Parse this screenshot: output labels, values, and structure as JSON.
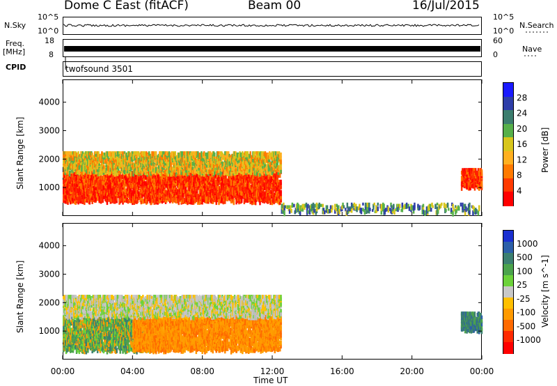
{
  "header": {
    "station": "Dome C East (fitACF)",
    "beam": "Beam 00",
    "date": "16/Jul/2015"
  },
  "strip": {
    "nsky_label": "N.Sky",
    "nsky_top": "10^5",
    "nsky_bot": "10^0",
    "nsearch_label": "N.Search",
    "nsearch_top": "10^5",
    "nsearch_bot": "10^0",
    "freq_label": "Freq.",
    "freq_unit": "[MHz]",
    "freq_top": "18",
    "freq_bot": "8",
    "nave_label": "Nave",
    "nave_top": "60",
    "nave_bot": "0",
    "cpid_label": "CPID",
    "cpid_value": "twofsound 3501"
  },
  "chart_data": [
    {
      "type": "heatmap",
      "title": "",
      "ylabel": "Slant Range [km]",
      "xlabel": "Time UT",
      "x_ticks": [
        "00:00",
        "04:00",
        "08:00",
        "12:00",
        "16:00",
        "20:00",
        "00:00"
      ],
      "y_ticks": [
        "1000",
        "2000",
        "3000",
        "4000"
      ],
      "ylim": [
        0,
        4800
      ],
      "colorbar": {
        "label": "Power [dB]",
        "ticks": [
          "4",
          "8",
          "12",
          "16",
          "20",
          "24",
          "28"
        ],
        "colors": [
          "#1a1aff",
          "#2e3ea8",
          "#3c7d6e",
          "#57b04a",
          "#d8c61c",
          "#ffb020",
          "#ff7a00",
          "#ff3a00",
          "#ff0000"
        ]
      },
      "regions": [
        {
          "t0": 0,
          "t1": 12.5,
          "r0": 600,
          "r1": 1600,
          "level": "high"
        },
        {
          "t0": 0,
          "t1": 12.5,
          "r0": 1600,
          "r1": 2300,
          "level": "mid"
        },
        {
          "t0": 12.5,
          "t1": 24,
          "r0": 200,
          "r1": 500,
          "level": "low"
        },
        {
          "t0": 22.8,
          "t1": 24,
          "r0": 1100,
          "r1": 1700,
          "level": "high"
        }
      ]
    },
    {
      "type": "heatmap",
      "title": "",
      "ylabel": "Slant Range [km]",
      "xlabel": "Time UT",
      "x_ticks": [
        "00:00",
        "04:00",
        "08:00",
        "12:00",
        "16:00",
        "20:00",
        "00:00"
      ],
      "y_ticks": [
        "1000",
        "2000",
        "3000",
        "4000"
      ],
      "ylim": [
        0,
        4800
      ],
      "colorbar": {
        "label": "Velocity [m s^-1]",
        "ticks": [
          "1000",
          "500",
          "100",
          "25",
          "-25",
          "-100",
          "-500",
          "-1000"
        ],
        "colors": [
          "#1a2fd0",
          "#2c5fa8",
          "#3b7f70",
          "#4ba34c",
          "#6cd23a",
          "#c8c8c8",
          "#ffc000",
          "#ff9a00",
          "#ff6a00",
          "#ff2a00",
          "#ff0000"
        ]
      },
      "regions": [
        {
          "t0": 0,
          "t1": 5,
          "r0": 400,
          "r1": 1600,
          "level": "green"
        },
        {
          "t0": 4,
          "t1": 12.5,
          "r0": 400,
          "r1": 1600,
          "level": "orange"
        },
        {
          "t0": 0,
          "t1": 12.5,
          "r0": 1600,
          "r1": 2300,
          "level": "grey"
        },
        {
          "t0": 22.8,
          "t1": 24,
          "r0": 1100,
          "r1": 1700,
          "level": "teal"
        }
      ]
    }
  ],
  "xaxis_title": "Time UT"
}
